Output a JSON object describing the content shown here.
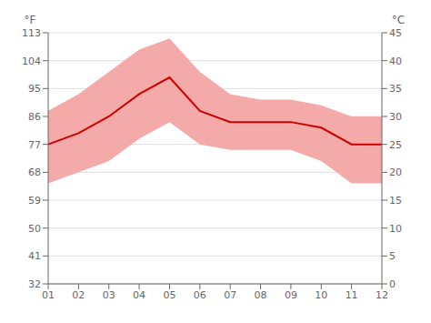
{
  "chart_data": {
    "type": "line",
    "categories": [
      "01",
      "02",
      "03",
      "04",
      "05",
      "06",
      "07",
      "08",
      "09",
      "10",
      "11",
      "12"
    ],
    "series": [
      {
        "type": "band",
        "color": "#f5aaaa",
        "low": [
          18,
          20,
          22,
          26,
          29,
          25,
          24,
          24,
          24,
          22,
          18,
          18
        ],
        "high": [
          31,
          34,
          38,
          42,
          44,
          38,
          34,
          33,
          33,
          32,
          30,
          30
        ]
      },
      {
        "type": "line",
        "color": "#cc0000",
        "values": [
          25,
          27,
          30,
          34,
          37,
          31,
          29,
          29,
          29,
          28,
          25,
          25
        ]
      }
    ],
    "ylabel": "°C",
    "ylim": [
      0,
      45
    ],
    "yticks": [
      0,
      5,
      10,
      15,
      20,
      25,
      30,
      35,
      40,
      45
    ],
    "y2label": "°F",
    "y2lim": [
      32,
      113
    ],
    "y2ticks": [
      32,
      41,
      50,
      59,
      68,
      77,
      86,
      95,
      104,
      113
    ],
    "grid": true
  }
}
